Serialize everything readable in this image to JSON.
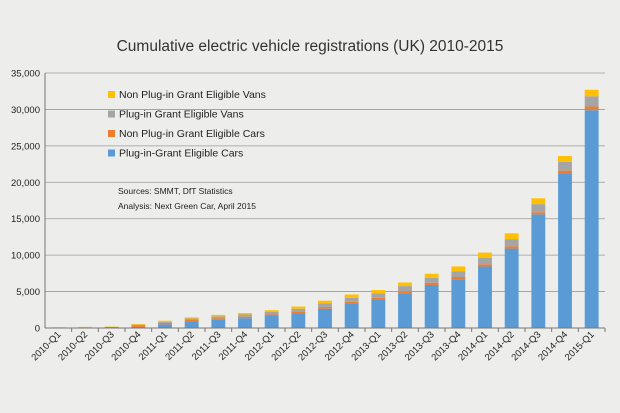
{
  "chart_data": {
    "type": "bar",
    "stacked": true,
    "title": "Cumulative electric vehicle registrations (UK) 2010-2015",
    "xlabel": "",
    "ylabel": "",
    "ylim": [
      0,
      35000
    ],
    "yticks": [
      0,
      5000,
      10000,
      15000,
      20000,
      25000,
      30000,
      35000
    ],
    "ytick_labels": [
      "0",
      "5,000",
      "10,000",
      "15,000",
      "20,000",
      "25,000",
      "30,000",
      "35,000"
    ],
    "grid": true,
    "legend_position": "upper-left",
    "categories": [
      "2010-Q1",
      "2010-Q2",
      "2010-Q3",
      "2010-Q4",
      "2011-Q1",
      "2011-Q2",
      "2011-Q3",
      "2011-Q4",
      "2012-Q1",
      "2012-Q2",
      "2012-Q3",
      "2012-Q4",
      "2013-Q1",
      "2013-Q2",
      "2013-Q3",
      "2013-Q4",
      "2014-Q1",
      "2014-Q2",
      "2014-Q3",
      "2014-Q4",
      "2015-Q1"
    ],
    "series": [
      {
        "name": "Plug-in-Grant Eligible Cars",
        "color": "#5b9bd5",
        "values": [
          0,
          0,
          0,
          150,
          500,
          900,
          1150,
          1350,
          1650,
          2000,
          2650,
          3350,
          3900,
          4750,
          5900,
          6700,
          8450,
          10900,
          15600,
          21200,
          29900
        ]
      },
      {
        "name": "Non Plug-in Grant Eligible Cars",
        "color": "#ed7d31",
        "values": [
          50,
          100,
          150,
          200,
          200,
          200,
          200,
          200,
          200,
          200,
          250,
          250,
          250,
          300,
          300,
          300,
          300,
          300,
          300,
          400,
          500
        ]
      },
      {
        "name": "Plug-in Grant Eligible Vans",
        "color": "#a5a5a5",
        "values": [
          0,
          0,
          0,
          100,
          150,
          200,
          250,
          300,
          350,
          450,
          500,
          550,
          600,
          700,
          700,
          800,
          900,
          1000,
          1100,
          1200,
          1400
        ]
      },
      {
        "name": "Non Plug-in Grant Eligible Vans",
        "color": "#ffc000",
        "values": [
          50,
          50,
          50,
          100,
          150,
          150,
          200,
          200,
          250,
          300,
          350,
          450,
          450,
          500,
          550,
          650,
          700,
          800,
          800,
          800,
          900
        ]
      }
    ],
    "legend_order": [
      3,
      2,
      1,
      0
    ],
    "annotation": [
      "Sources: SMMT, DfT Statistics",
      "Analysis: Next Green Car, April 2015"
    ]
  }
}
